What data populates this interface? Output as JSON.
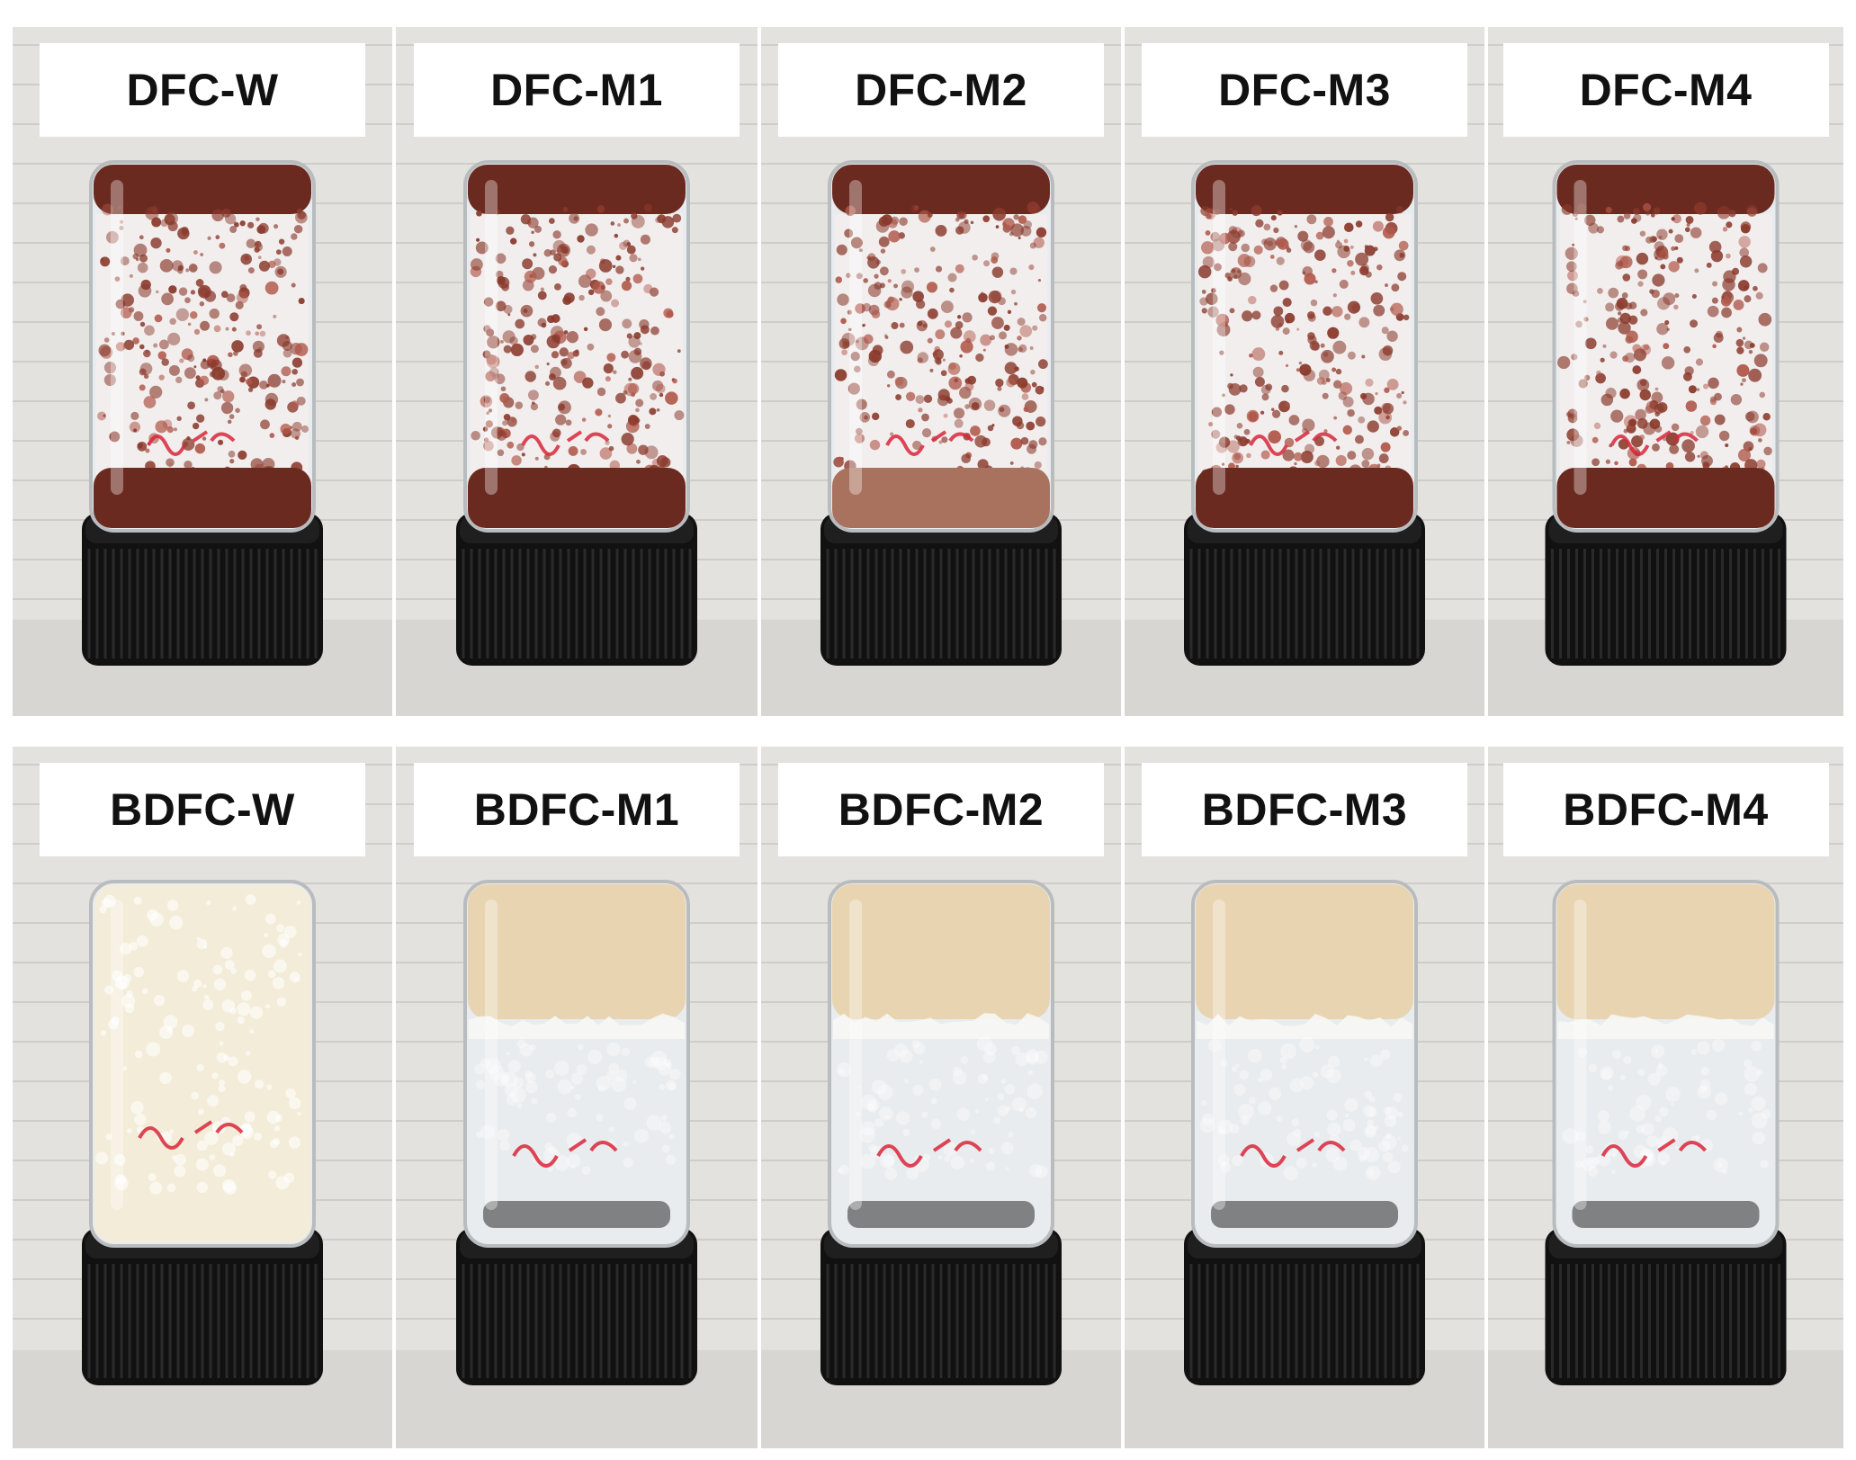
{
  "figure": {
    "rows": [
      {
        "id": "dfc",
        "panels": [
          {
            "label": "DFC-W",
            "marking": "57. M1",
            "contents": "red-brown slurry foam"
          },
          {
            "label": "DFC-M1",
            "marking": "57. M1",
            "contents": "red-brown slurry foam"
          },
          {
            "label": "DFC-M2",
            "marking": "57. M2",
            "contents": "red-brown slurry foam"
          },
          {
            "label": "DFC-M3",
            "marking": "57. M3",
            "contents": "red-brown slurry foam"
          },
          {
            "label": "DFC-M4",
            "marking": "57. M4",
            "contents": "red-brown slurry foam"
          }
        ]
      },
      {
        "id": "bdfc",
        "panels": [
          {
            "label": "BDFC-W",
            "marking": "M1 57.",
            "contents": "cream white foam"
          },
          {
            "label": "BDFC-M1",
            "marking": "WM100 - W 57.",
            "contents": "tan gel over clear glass"
          },
          {
            "label": "BDFC-M2",
            "marking": "57. M2B",
            "contents": "tan gel over clear glass"
          },
          {
            "label": "BDFC-M3",
            "marking": "57. M3B",
            "contents": "tan gel over clear glass"
          },
          {
            "label": "BDFC-M4",
            "marking": "57. M4B",
            "contents": "tan gel over clear glass"
          }
        ]
      }
    ]
  },
  "colors": {
    "background_wall": "#e4e2de",
    "shelf": "#d8d6d2",
    "cap": "#111111",
    "dfc_slurry": "#6b2a20",
    "dfc_foam": "#f2eeee",
    "bdfc_gel": "#e8d4b0",
    "bdfc_cream": "#f3ecd8",
    "glass": "#e9ecee",
    "marker_red": "#d9263a"
  }
}
